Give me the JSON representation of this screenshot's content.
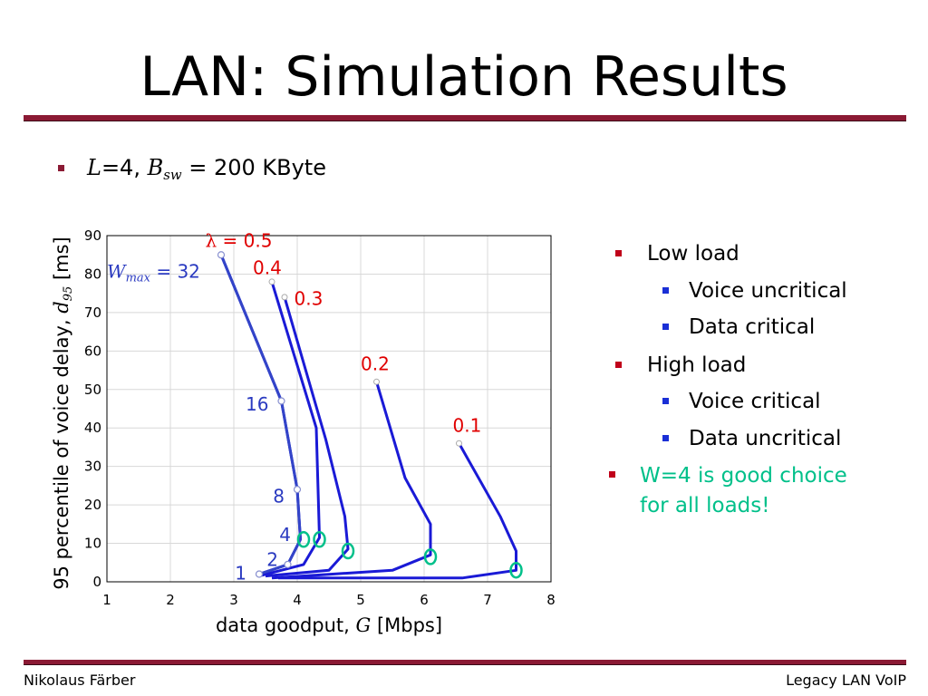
{
  "slide": {
    "title": "LAN: Simulation Results",
    "bullet_L": "L",
    "bullet_text1": "=4, ",
    "bullet_B": "B",
    "bullet_B_sub": "sw",
    "bullet_text2": " = 200 KByte"
  },
  "bullets_right": [
    {
      "text": "Low load",
      "level": 1
    },
    {
      "text": "Voice uncritical",
      "level": 2
    },
    {
      "text": "Data critical",
      "level": 2
    },
    {
      "text": "High load",
      "level": 1
    },
    {
      "text": "Voice critical",
      "level": 2
    },
    {
      "text": "Data uncritical",
      "level": 2
    },
    {
      "text": "W=4 is good choice",
      "level": 1
    },
    {
      "text": "for all loads!",
      "level": 0
    }
  ],
  "footer": {
    "left": "Nikolaus Färber",
    "right": "Legacy LAN VoIP"
  },
  "colors": {
    "accent_rule": "#8b1a34",
    "bullet_red": "#c0001a",
    "bullet_blue": "#1a2fd6",
    "highlight_green": "#00c08a",
    "series_blue": "#1a1ad6",
    "wmax_curve": "#3344c8",
    "wmax_text": "#2a3ac0",
    "lambda_label": "#e00000"
  },
  "chart_data": {
    "type": "line",
    "xlim": [
      1,
      8
    ],
    "ylim": [
      0,
      90
    ],
    "xticks": [
      1,
      2,
      3,
      4,
      5,
      6,
      7,
      8
    ],
    "yticks": [
      0,
      10,
      20,
      30,
      40,
      50,
      60,
      70,
      80,
      90
    ],
    "grid": true,
    "xlabel_pre": "data goodput, ",
    "xlabel_var": "G",
    "xlabel_post": " [Mbps]",
    "ylabel_pre": "95 percentile of voice delay, ",
    "ylabel_var": "d",
    "ylabel_sub": "95",
    "ylabel_post": " [ms]",
    "series": [
      {
        "name": "0.5",
        "points": [
          [
            2.8,
            85
          ],
          [
            3.75,
            47
          ],
          [
            4.0,
            24
          ],
          [
            4.05,
            11
          ],
          [
            3.85,
            4.5
          ],
          [
            3.4,
            2
          ]
        ]
      },
      {
        "name": "0.4",
        "points": [
          [
            3.6,
            78
          ],
          [
            4.3,
            40
          ],
          [
            4.35,
            11.5
          ],
          [
            4.1,
            4.5
          ],
          [
            3.4,
            1.5
          ]
        ]
      },
      {
        "name": "0.3",
        "points": [
          [
            3.8,
            74
          ],
          [
            4.45,
            37
          ],
          [
            4.75,
            17
          ],
          [
            4.8,
            8.5
          ],
          [
            4.5,
            3
          ],
          [
            3.5,
            1.5
          ]
        ]
      },
      {
        "name": "0.2",
        "points": [
          [
            5.25,
            52
          ],
          [
            5.7,
            27
          ],
          [
            6.1,
            15
          ],
          [
            6.1,
            7
          ],
          [
            5.5,
            3
          ],
          [
            3.6,
            1
          ]
        ]
      },
      {
        "name": "0.1",
        "points": [
          [
            6.55,
            36
          ],
          [
            7.2,
            17
          ],
          [
            7.45,
            8
          ],
          [
            7.45,
            3
          ],
          [
            6.6,
            1
          ],
          [
            3.7,
            1
          ]
        ]
      }
    ],
    "wmax_curve": {
      "points": [
        [
          2.8,
          85
        ],
        [
          3.75,
          47
        ],
        [
          4.0,
          24
        ],
        [
          4.05,
          11
        ],
        [
          3.85,
          4.5
        ],
        [
          3.4,
          2
        ]
      ],
      "markers": [
        [
          2.8,
          85
        ],
        [
          3.75,
          47
        ],
        [
          4.0,
          24
        ],
        [
          3.85,
          4.5
        ],
        [
          3.4,
          2
        ]
      ]
    },
    "wmax_labels": [
      {
        "text": "1",
        "at": [
          3.2,
          2
        ]
      },
      {
        "text": "2",
        "at": [
          3.7,
          5.5
        ]
      },
      {
        "text": "4",
        "at": [
          3.9,
          12
        ]
      },
      {
        "text": "8",
        "at": [
          3.8,
          22
        ]
      },
      {
        "text": "16",
        "at": [
          3.55,
          46
        ]
      }
    ],
    "wmax_title": {
      "var": "W",
      "sub": "max",
      "rest": " = 32"
    },
    "lambda_title": {
      "symbol": "λ",
      "rest": " = 0.5"
    },
    "w4_circles": [
      [
        4.1,
        11
      ],
      [
        4.35,
        11
      ],
      [
        4.8,
        8
      ],
      [
        6.1,
        6.5
      ],
      [
        7.45,
        3
      ]
    ]
  }
}
